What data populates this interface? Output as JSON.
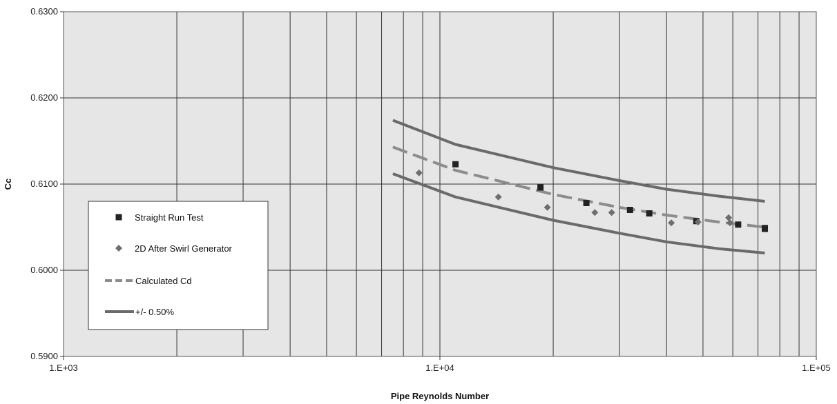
{
  "chart_data": {
    "type": "line",
    "xscale": "log",
    "xlim": [
      1000,
      100000
    ],
    "ylim": [
      0.59,
      0.63
    ],
    "x_ticks": [
      1000,
      10000,
      100000
    ],
    "x_tick_labels": [
      "1.E+03",
      "1.E+04",
      "1.E+05"
    ],
    "y_ticks": [
      0.59,
      0.6,
      0.61,
      0.62,
      0.63
    ],
    "y_tick_labels": [
      "0.5900",
      "0.6000",
      "0.6100",
      "0.6200",
      "0.6300"
    ],
    "xlabel": "Pipe Reynolds Number",
    "ylabel": "Cc",
    "grid": true,
    "legend_position": "lower-left",
    "series": [
      {
        "name": "Straight Run Test",
        "kind": "scatter",
        "marker": "square",
        "color": "#222222",
        "points": [
          [
            11000,
            0.6123
          ],
          [
            18500,
            0.6096
          ],
          [
            24500,
            0.6078
          ],
          [
            32000,
            0.607
          ],
          [
            36000,
            0.6066
          ],
          [
            48000,
            0.6057
          ],
          [
            62000,
            0.6053
          ],
          [
            73000,
            0.6049
          ],
          [
            73000,
            0.6048
          ]
        ]
      },
      {
        "name": "2D After Swirl Generator",
        "kind": "scatter",
        "marker": "diamond",
        "color": "#6e6e6e",
        "points": [
          [
            8800,
            0.6113
          ],
          [
            14300,
            0.6085
          ],
          [
            19300,
            0.6073
          ],
          [
            25800,
            0.6067
          ],
          [
            28600,
            0.6067
          ],
          [
            41200,
            0.6055
          ],
          [
            48500,
            0.6056
          ],
          [
            58500,
            0.6061
          ],
          [
            59000,
            0.6055
          ]
        ]
      },
      {
        "name": "Calculated Cd",
        "kind": "line",
        "dash": true,
        "color": "#8c8c8c",
        "points": [
          [
            7500,
            0.6143
          ],
          [
            11000,
            0.6116
          ],
          [
            20000,
            0.6088
          ],
          [
            30000,
            0.6073
          ],
          [
            40000,
            0.6064
          ],
          [
            55000,
            0.6056
          ],
          [
            73000,
            0.605
          ]
        ]
      },
      {
        "name": "+/- 0.50%",
        "kind": "line",
        "dash": false,
        "color": "#6a6a6a",
        "points": [
          [
            7500,
            0.6174
          ],
          [
            11000,
            0.6146
          ],
          [
            20000,
            0.6119
          ],
          [
            30000,
            0.6104
          ],
          [
            40000,
            0.6094
          ],
          [
            55000,
            0.6086
          ],
          [
            73000,
            0.608
          ]
        ]
      },
      {
        "kind": "line",
        "dash": false,
        "color": "#6a6a6a",
        "points": [
          [
            7500,
            0.6112
          ],
          [
            11000,
            0.6085
          ],
          [
            20000,
            0.6058
          ],
          [
            30000,
            0.6043
          ],
          [
            40000,
            0.6033
          ],
          [
            55000,
            0.6025
          ],
          [
            73000,
            0.602
          ]
        ]
      }
    ]
  }
}
